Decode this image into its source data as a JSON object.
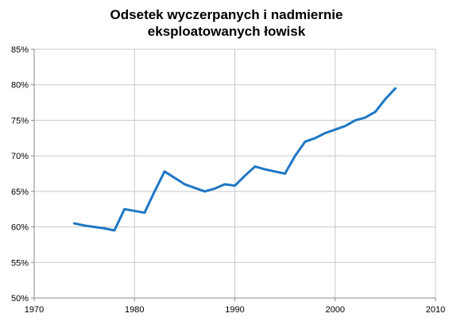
{
  "chart_data": {
    "type": "line",
    "title_lines": [
      "Odsetek wyczerpanych i nadmiernie",
      "eksploatowanych łowisk"
    ],
    "xlabel": "",
    "ylabel": "",
    "xlim": [
      1970,
      2010
    ],
    "ylim": [
      50,
      85
    ],
    "x_ticks": [
      1970,
      1980,
      1990,
      2000,
      2010
    ],
    "y_ticks": [
      50,
      55,
      60,
      65,
      70,
      75,
      80,
      85
    ],
    "y_tick_labels": [
      "50%",
      "55%",
      "60%",
      "65%",
      "70%",
      "75%",
      "80%",
      "85%"
    ],
    "grid": true,
    "legend": "none",
    "colors": {
      "line": "#1f77c4",
      "grid": "#c8c8c8",
      "axis": "#888888"
    },
    "series": [
      {
        "x": [
          1974,
          1975,
          1976,
          1977,
          1978,
          1979,
          1981,
          1982,
          1983,
          1985,
          1987,
          1988,
          1989,
          1990,
          1991,
          1992,
          1993,
          1994,
          1995,
          1996,
          1997,
          1998,
          1999,
          2000,
          2001,
          2002,
          2003,
          2004,
          2005,
          2006
        ],
        "values": [
          60.5,
          60.2,
          60.0,
          59.8,
          59.5,
          62.5,
          62.0,
          65.0,
          67.8,
          66.0,
          65.0,
          65.4,
          66.0,
          65.8,
          67.2,
          68.5,
          68.1,
          67.8,
          67.5,
          70.0,
          72.0,
          72.5,
          73.2,
          73.7,
          74.2,
          75.0,
          75.4,
          76.2,
          78.0,
          79.5
        ]
      }
    ]
  }
}
